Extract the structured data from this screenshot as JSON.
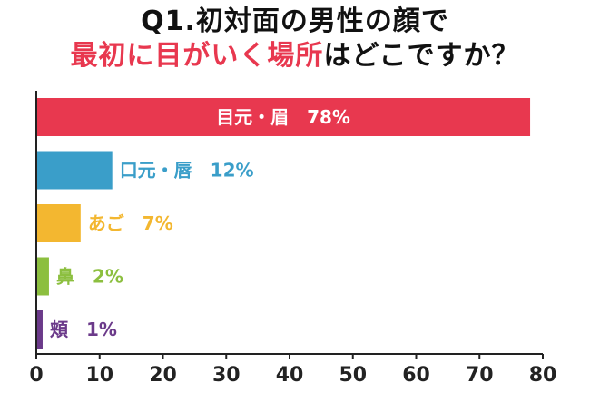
{
  "title": {
    "line1": "Q1.初対面の男性の顔で",
    "line2_highlight": "最初に目がいく場所",
    "line2_rest": "はどこですか？"
  },
  "colors": {
    "title_highlight": "#e8384f",
    "title_text": "#111111",
    "axis": "#222222"
  },
  "chart_data": {
    "type": "bar",
    "orientation": "horizontal",
    "categories": [
      "目元・眉",
      "口元・唇",
      "あご",
      "鼻",
      "頬"
    ],
    "values": [
      78,
      12,
      7,
      2,
      1
    ],
    "value_labels": [
      "78%",
      "12%",
      "7%",
      "2%",
      "1%"
    ],
    "bar_colors": [
      "#e8384f",
      "#3a9ec9",
      "#f3b730",
      "#8cbf3f",
      "#6b3a8a"
    ],
    "label_inside_first_bar": true,
    "xlim": [
      0,
      80
    ],
    "xticks": [
      0,
      10,
      20,
      30,
      40,
      50,
      60,
      70,
      80
    ],
    "grid": false,
    "legend": "none"
  }
}
